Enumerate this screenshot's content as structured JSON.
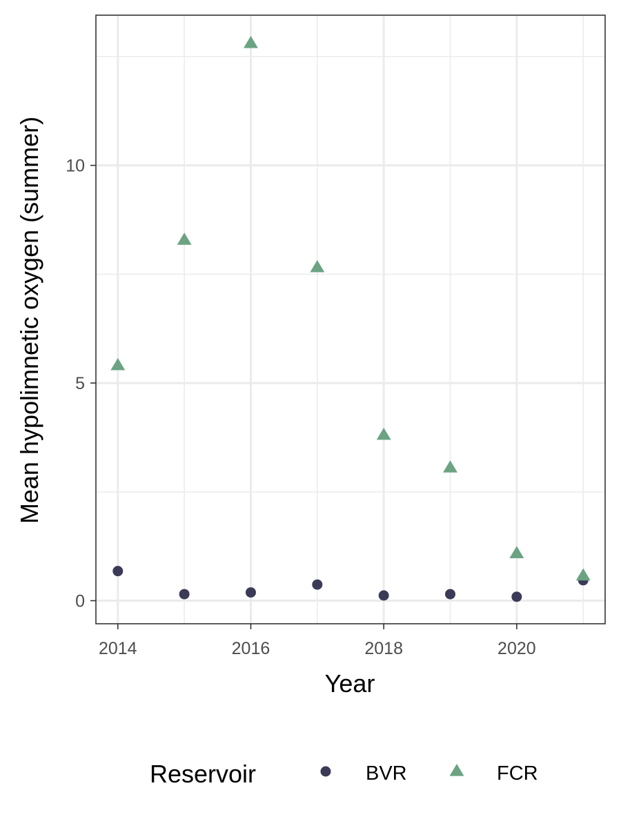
{
  "chart_data": {
    "type": "scatter",
    "title": "",
    "xlabel": "Year",
    "ylabel": "Mean hypolimnetic oxygen (summer)",
    "xlim": [
      2013.67,
      2021.33
    ],
    "ylim": [
      -0.53,
      13.45
    ],
    "x_ticks": [
      2014,
      2016,
      2018,
      2020
    ],
    "y_ticks": [
      0,
      5,
      10
    ],
    "x_tick_labels": [
      "2014",
      "2016",
      "2018",
      "2020"
    ],
    "y_tick_labels": [
      "0",
      "5",
      "10"
    ],
    "grid": true,
    "legend": {
      "title": "Reservoir",
      "position": "bottom"
    },
    "series": [
      {
        "name": "BVR",
        "marker": "circle",
        "color": "#3b3b57",
        "x": [
          2014,
          2015,
          2016,
          2017,
          2018,
          2019,
          2020,
          2021
        ],
        "y": [
          0.68,
          0.15,
          0.19,
          0.37,
          0.12,
          0.15,
          0.09,
          0.47
        ]
      },
      {
        "name": "FCR",
        "marker": "triangle",
        "color": "#6ba383",
        "x": [
          2014,
          2015,
          2016,
          2017,
          2018,
          2019,
          2020,
          2021
        ],
        "y": [
          5.4,
          8.28,
          12.8,
          7.65,
          3.8,
          3.05,
          1.08,
          0.57
        ]
      }
    ]
  }
}
